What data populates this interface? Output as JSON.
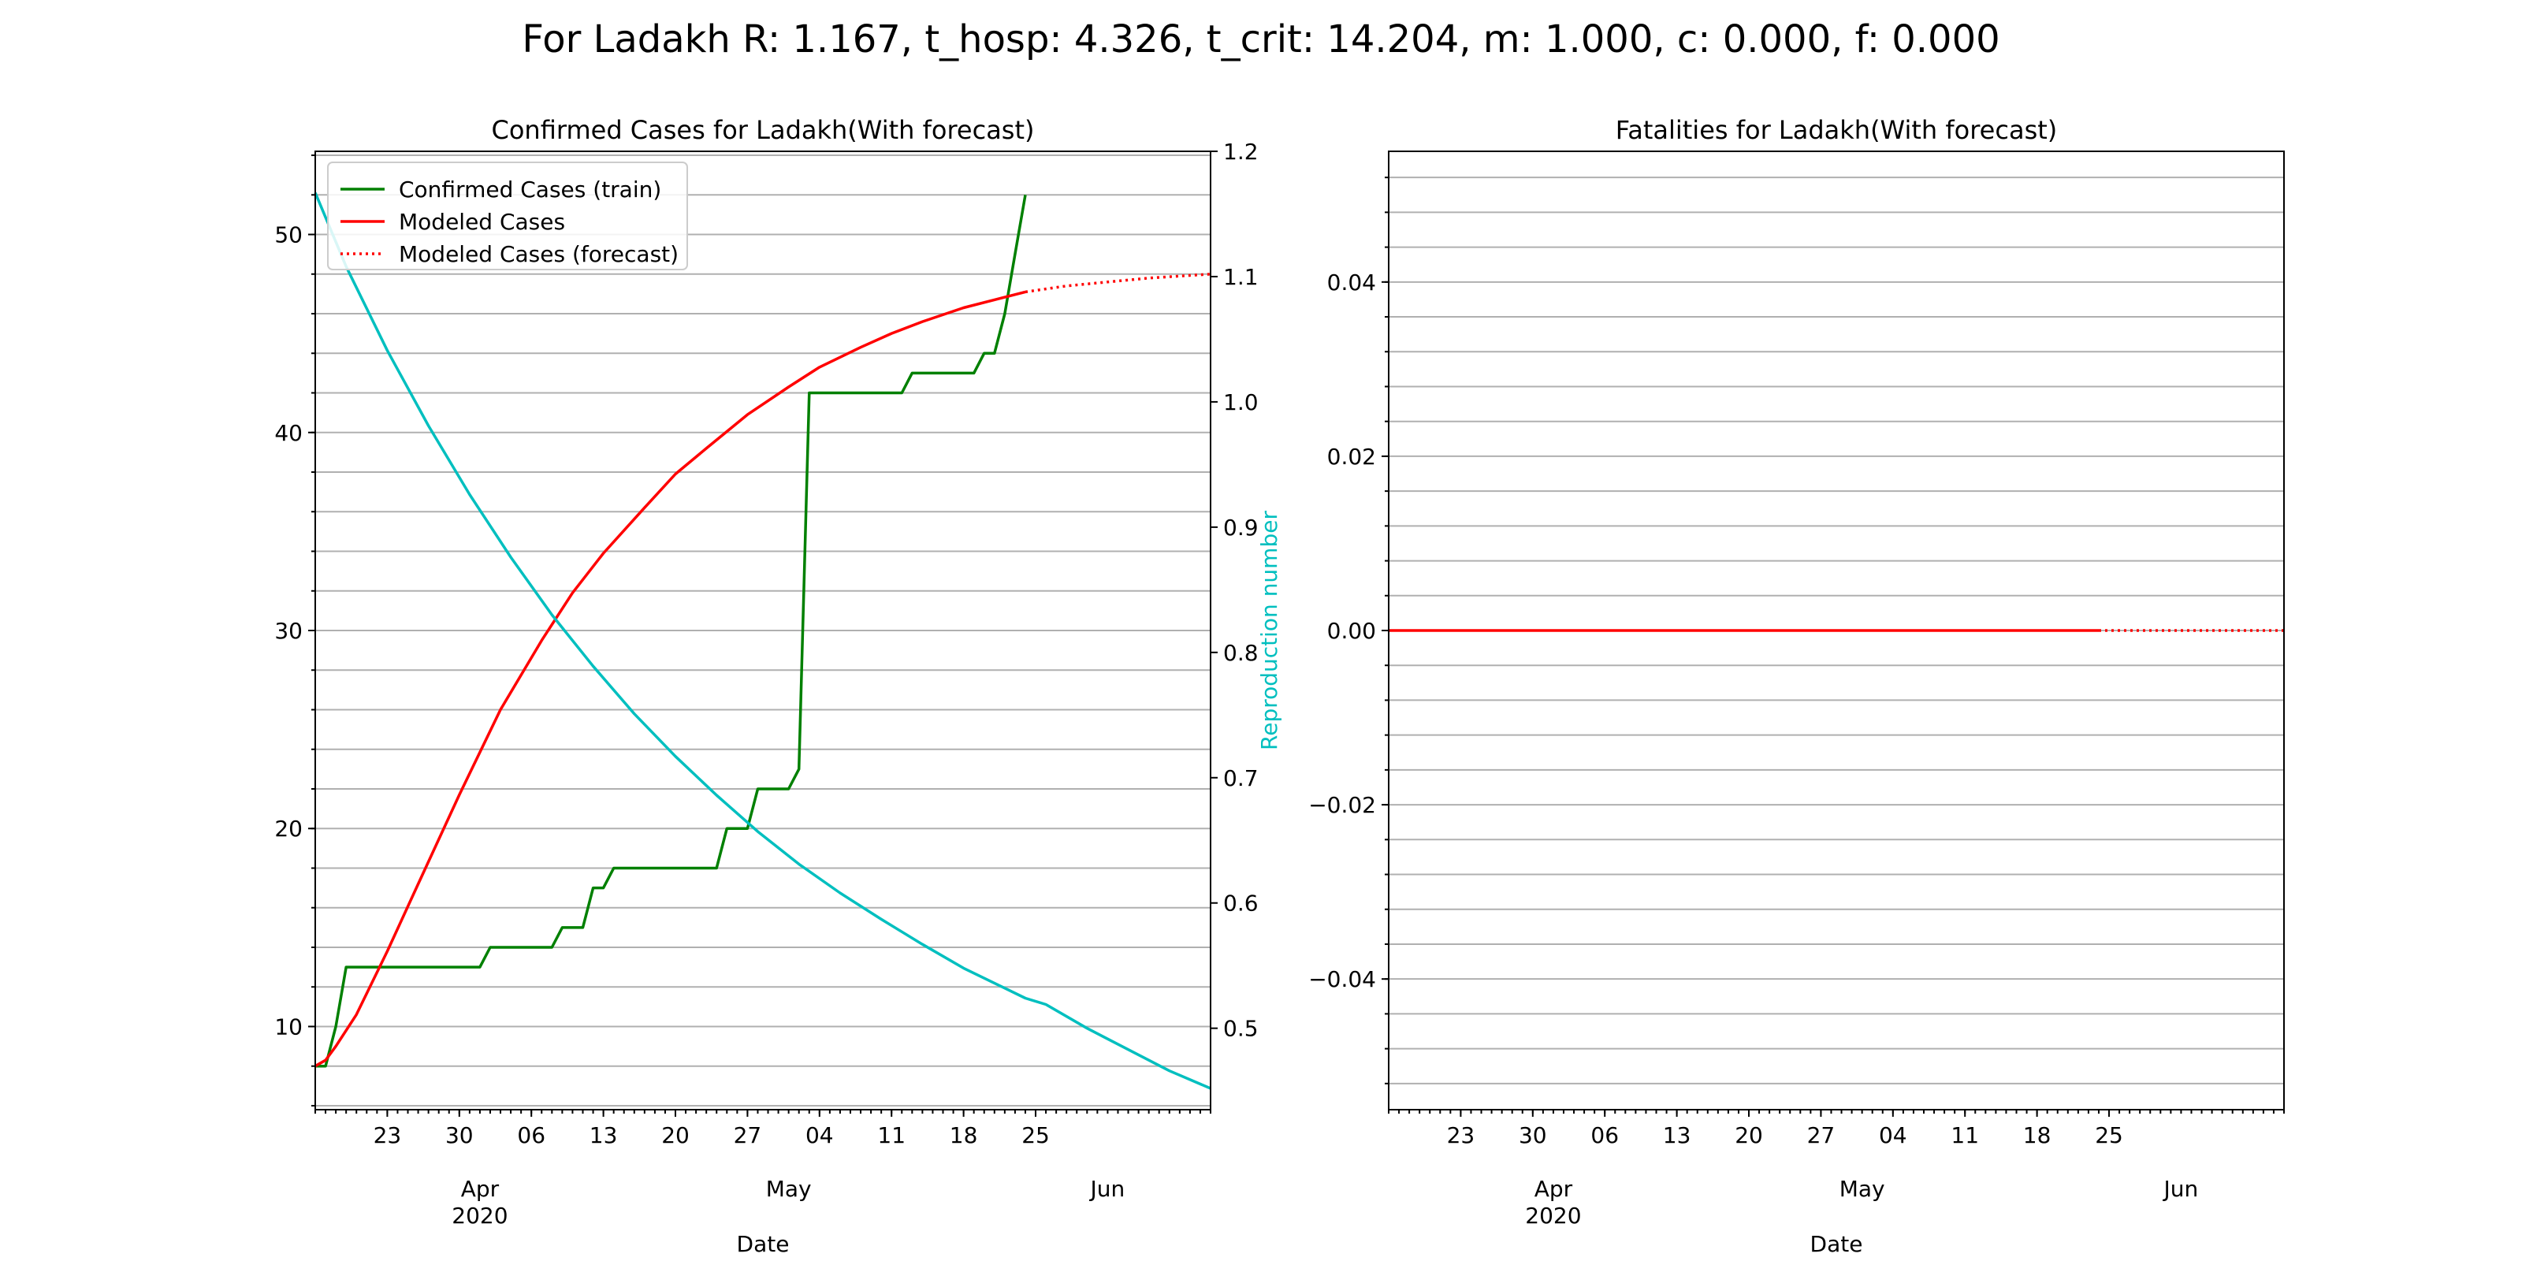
{
  "figure": {
    "suptitle": "For Ladakh R: 1.167, t_hosp: 4.326, t_crit: 14.204, m: 1.000, c: 0.000, f: 0.000"
  },
  "colors": {
    "train": "#008000",
    "model": "#ff0000",
    "reproduction": "#00bfbf"
  },
  "chart_data": [
    {
      "type": "line",
      "title": "Confirmed Cases for Ladakh(With forecast)",
      "xlabel": "Date",
      "ylabel": "",
      "ylabel_right": "Reproduction number",
      "xlim": [
        "2020-03-16",
        "2020-06-11"
      ],
      "ylim": [
        5.8,
        54.2
      ],
      "ylim_right": [
        0.435,
        1.2
      ],
      "y_ticks": [
        10,
        20,
        30,
        40,
        50
      ],
      "y_tick_labels": [
        "10",
        "20",
        "30",
        "40",
        "50"
      ],
      "y_right_ticks": [
        0.5,
        0.6,
        0.7,
        0.8,
        0.9,
        1.0,
        1.1,
        1.2
      ],
      "y_right_tick_labels": [
        "0.5",
        "0.6",
        "0.7",
        "0.8",
        "0.9",
        "1.0",
        "1.1",
        "1.2"
      ],
      "x_ticks": [
        "2020-03-23",
        "2020-03-30",
        "2020-04-06",
        "2020-04-13",
        "2020-04-20",
        "2020-04-27",
        "2020-05-04",
        "2020-05-11",
        "2020-05-18",
        "2020-05-25"
      ],
      "x_tick_labels": [
        "23",
        "30",
        "06",
        "13",
        "20",
        "27",
        "04",
        "11",
        "18",
        "25"
      ],
      "x_month_ticks": [
        "2020-04-01",
        "2020-05-01",
        "2020-06-01"
      ],
      "x_month_labels": [
        "Apr\n2020",
        "May",
        "Jun"
      ],
      "grid": "horizontal minor",
      "legend": "upper-left",
      "legend_entries": [
        "Confirmed Cases (train)",
        "Modeled Cases",
        "Modeled Cases (forecast)"
      ],
      "series": [
        {
          "name": "Confirmed Cases (train)",
          "style": "solid",
          "color": "#008000",
          "points": [
            [
              "2020-03-16",
              8
            ],
            [
              "2020-03-17",
              8
            ],
            [
              "2020-03-18",
              10
            ],
            [
              "2020-03-19",
              13
            ],
            [
              "2020-03-30",
              13
            ],
            [
              "2020-03-31",
              13
            ],
            [
              "2020-04-01",
              13
            ],
            [
              "2020-04-02",
              14
            ],
            [
              "2020-04-08",
              14
            ],
            [
              "2020-04-09",
              15
            ],
            [
              "2020-04-11",
              15
            ],
            [
              "2020-04-12",
              17
            ],
            [
              "2020-04-13",
              17
            ],
            [
              "2020-04-14",
              18
            ],
            [
              "2020-04-24",
              18
            ],
            [
              "2020-04-25",
              20
            ],
            [
              "2020-04-26",
              20
            ],
            [
              "2020-04-27",
              20
            ],
            [
              "2020-04-28",
              22
            ],
            [
              "2020-05-01",
              22
            ],
            [
              "2020-05-02",
              23
            ],
            [
              "2020-05-03",
              42
            ],
            [
              "2020-05-12",
              42
            ],
            [
              "2020-05-13",
              43
            ],
            [
              "2020-05-19",
              43
            ],
            [
              "2020-05-20",
              44
            ],
            [
              "2020-05-21",
              44
            ],
            [
              "2020-05-22",
              46
            ],
            [
              "2020-05-23",
              49
            ],
            [
              "2020-05-24",
              52
            ]
          ]
        },
        {
          "name": "Modeled Cases",
          "style": "solid",
          "color": "#ff0000",
          "points": [
            [
              "2020-03-16",
              8.0
            ],
            [
              "2020-03-17",
              8.3
            ],
            [
              "2020-03-18",
              9.0
            ],
            [
              "2020-03-20",
              10.6
            ],
            [
              "2020-03-23",
              13.8
            ],
            [
              "2020-03-26",
              17.2
            ],
            [
              "2020-03-30",
              21.7
            ],
            [
              "2020-04-03",
              26.0
            ],
            [
              "2020-04-07",
              29.5
            ],
            [
              "2020-04-10",
              31.9
            ],
            [
              "2020-04-13",
              33.9
            ],
            [
              "2020-04-17",
              36.2
            ],
            [
              "2020-04-20",
              37.9
            ],
            [
              "2020-04-23",
              39.2
            ],
            [
              "2020-04-27",
              40.9
            ],
            [
              "2020-05-01",
              42.3
            ],
            [
              "2020-05-04",
              43.3
            ],
            [
              "2020-05-08",
              44.3
            ],
            [
              "2020-05-11",
              45.0
            ],
            [
              "2020-05-14",
              45.6
            ],
            [
              "2020-05-18",
              46.3
            ],
            [
              "2020-05-21",
              46.7
            ],
            [
              "2020-05-24",
              47.1
            ]
          ]
        },
        {
          "name": "Modeled Cases (forecast)",
          "style": "dotted",
          "color": "#ff0000",
          "points": [
            [
              "2020-05-24",
              47.1
            ],
            [
              "2020-05-28",
              47.4
            ],
            [
              "2020-06-01",
              47.6
            ],
            [
              "2020-06-05",
              47.8
            ],
            [
              "2020-06-11",
              48.0
            ]
          ]
        },
        {
          "name": "",
          "axis": "right",
          "style": "solid",
          "color": "#00bfbf",
          "points": [
            [
              "2020-03-16",
              1.167
            ],
            [
              "2020-03-19",
              1.108
            ],
            [
              "2020-03-23",
              1.041
            ],
            [
              "2020-03-27",
              0.981
            ],
            [
              "2020-03-31",
              0.926
            ],
            [
              "2020-04-04",
              0.876
            ],
            [
              "2020-04-08",
              0.83
            ],
            [
              "2020-04-12",
              0.789
            ],
            [
              "2020-04-16",
              0.751
            ],
            [
              "2020-04-20",
              0.717
            ],
            [
              "2020-04-24",
              0.686
            ],
            [
              "2020-04-28",
              0.657
            ],
            [
              "2020-05-02",
              0.631
            ],
            [
              "2020-05-06",
              0.608
            ],
            [
              "2020-05-10",
              0.587
            ],
            [
              "2020-05-14",
              0.567
            ],
            [
              "2020-05-18",
              0.548
            ],
            [
              "2020-05-22",
              0.532
            ],
            [
              "2020-05-24",
              0.524
            ],
            [
              "2020-05-26",
              0.519
            ],
            [
              "2020-05-30",
              0.5
            ],
            [
              "2020-06-03",
              0.483
            ],
            [
              "2020-06-07",
              0.466
            ],
            [
              "2020-06-11",
              0.452
            ]
          ]
        }
      ]
    },
    {
      "type": "line",
      "title": "Fatalities for Ladakh(With forecast)",
      "xlabel": "Date",
      "ylabel": "",
      "xlim": [
        "2020-03-16",
        "2020-06-11"
      ],
      "ylim": [
        -0.055,
        0.055
      ],
      "y_ticks": [
        -0.04,
        -0.02,
        0.0,
        0.02,
        0.04
      ],
      "y_tick_labels": [
        "−0.04",
        "−0.02",
        "0.00",
        "0.02",
        "0.04"
      ],
      "x_ticks": [
        "2020-03-23",
        "2020-03-30",
        "2020-04-06",
        "2020-04-13",
        "2020-04-20",
        "2020-04-27",
        "2020-05-04",
        "2020-05-11",
        "2020-05-18",
        "2020-05-25"
      ],
      "x_tick_labels": [
        "23",
        "30",
        "06",
        "13",
        "20",
        "27",
        "04",
        "11",
        "18",
        "25"
      ],
      "x_month_ticks": [
        "2020-04-01",
        "2020-05-01",
        "2020-06-01"
      ],
      "x_month_labels": [
        "Apr\n2020",
        "May",
        "Jun"
      ],
      "grid": "horizontal minor",
      "series": [
        {
          "name": "",
          "style": "solid",
          "color": "#ff0000",
          "points": [
            [
              "2020-03-16",
              0.0
            ],
            [
              "2020-05-24",
              0.0
            ]
          ]
        },
        {
          "name": "",
          "style": "dotted",
          "color": "#ff0000",
          "points": [
            [
              "2020-05-24",
              0.0
            ],
            [
              "2020-06-11",
              0.0
            ]
          ]
        }
      ]
    }
  ]
}
